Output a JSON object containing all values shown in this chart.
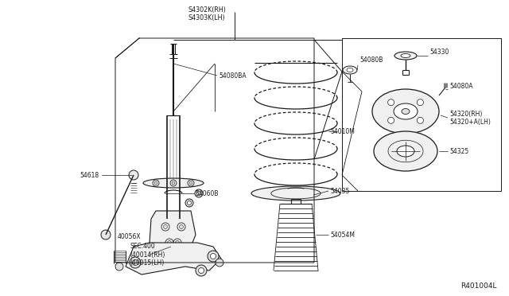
{
  "fig_width": 6.4,
  "fig_height": 3.72,
  "dpi": 100,
  "bg_color": "#ffffff",
  "line_color": "#1a1a1a",
  "diagram_ref": "R401004L",
  "labels": {
    "top_label1": "S4302K(RH)",
    "top_label2": "S4303K(LH)",
    "lbl_54080ba": "54080BA",
    "lbl_54060b": "54060B",
    "lbl_54618": "54618",
    "lbl_40056x": "40056X",
    "lbl_sec400": "SEC.400",
    "lbl_40014": "(40014(RH)",
    "lbl_40015": "(40015(LH)",
    "lbl_54010m": "54010M",
    "lbl_54035": "54035",
    "lbl_54054m": "54054M",
    "lbl_54080b": "54080B",
    "lbl_54330": "54330",
    "lbl_54080a": "54080A",
    "lbl_54320rh": "54320(RH)",
    "lbl_54320lh": "54320+A(LH)",
    "lbl_54325": "54325"
  }
}
